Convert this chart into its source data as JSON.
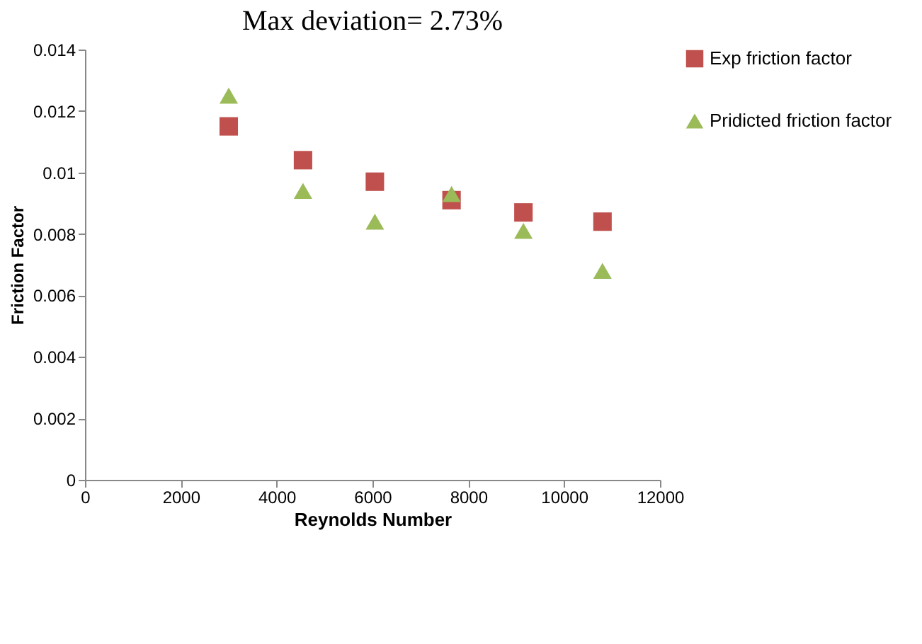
{
  "chart_data": {
    "type": "scatter",
    "title": "Max deviation= 2.73%",
    "xlabel": "Reynolds Number",
    "ylabel": "Friction Factor",
    "x": [
      3000,
      4550,
      6050,
      7650,
      9150,
      10800
    ],
    "series": [
      {
        "name": "Exp friction factor",
        "color": "#c0504d",
        "marker": "square",
        "values": [
          0.0115,
          0.0104,
          0.0097,
          0.0091,
          0.0087,
          0.0084
        ]
      },
      {
        "name": "Pridicted friction factor",
        "color": "#9bbb59",
        "marker": "triangle",
        "values": [
          0.0125,
          0.0094,
          0.0084,
          0.0093,
          0.0081,
          0.0068
        ]
      }
    ],
    "xlim": [
      0,
      12000
    ],
    "xticks": [
      0,
      2000,
      4000,
      6000,
      8000,
      10000,
      12000
    ],
    "ylim": [
      0,
      0.014
    ],
    "yticks": [
      0,
      0.002,
      0.004,
      0.006,
      0.008,
      0.01,
      0.012,
      0.014
    ],
    "grid": false,
    "legend": "top right"
  }
}
